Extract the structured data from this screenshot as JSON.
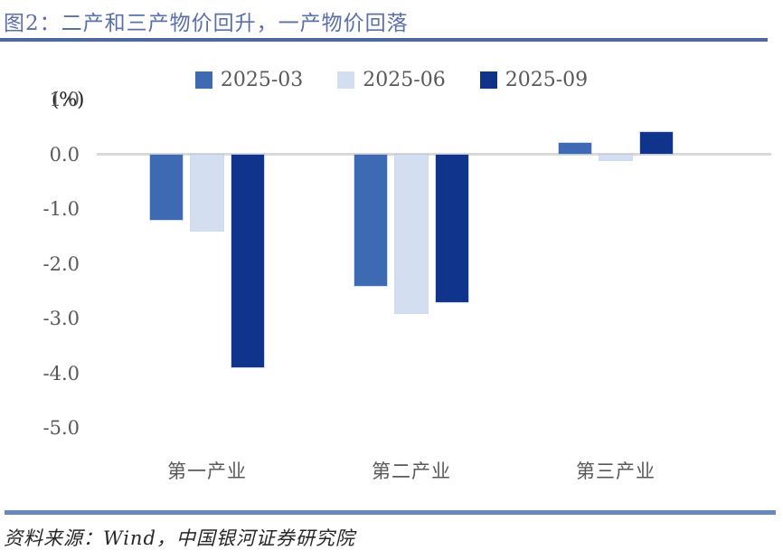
{
  "title": {
    "text": "图2：二产和三产物价回升，一产物价回落"
  },
  "legend": [
    {
      "label": "2025-03",
      "color": "#3e6ab4"
    },
    {
      "label": "2025-06",
      "color": "#d3def1"
    },
    {
      "label": "2025-09",
      "color": "#10338b"
    }
  ],
  "axis": {
    "unit_label": "(%)",
    "ticks": [
      "1.0",
      "0.0",
      "-1.0",
      "-2.0",
      "-3.0",
      "-4.0",
      "-5.0"
    ]
  },
  "footer": {
    "source": "资料来源：Wind，中国银河证券研究院"
  },
  "chart_data": {
    "type": "bar",
    "title": "图2：二产和三产物价回升，一产物价回落",
    "categories": [
      "第一产业",
      "第二产业",
      "第三产业"
    ],
    "series": [
      {
        "name": "2025-03",
        "color": "#3e6ab4",
        "values": [
          -1.2,
          -2.4,
          0.2
        ]
      },
      {
        "name": "2025-06",
        "color": "#d3def1",
        "values": [
          -1.4,
          -2.9,
          -0.1
        ]
      },
      {
        "name": "2025-09",
        "color": "#10338b",
        "values": [
          -3.9,
          -2.7,
          0.4
        ]
      }
    ],
    "xlabel": "",
    "ylabel": "(%)",
    "ylim": [
      -5.0,
      1.0
    ],
    "grid": false,
    "legend_position": "top",
    "source_note": "资料来源：Wind，中国银河证券研究院"
  }
}
